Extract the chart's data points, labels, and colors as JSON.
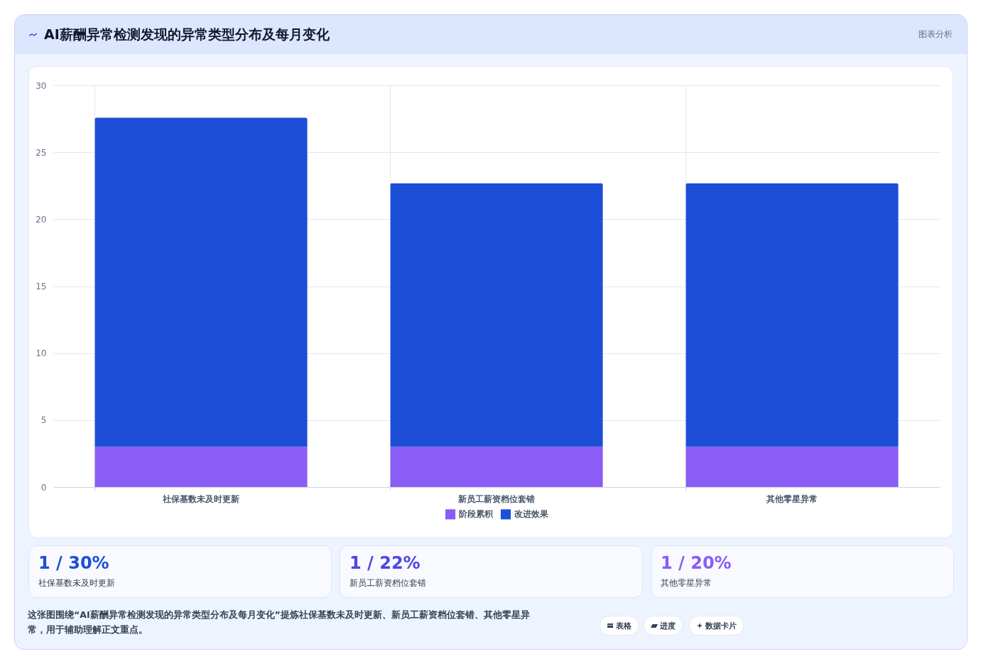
{
  "chart_data": {
    "type": "bar",
    "title": "AI薪酬异常检测发现的异常类型分布及每月变化",
    "categories": [
      "社保基数未及时更新",
      "新员工薪资档位套错",
      "其他零星异常"
    ],
    "series": [
      {
        "name": "阶段累积",
        "color": "#8b5cf6",
        "values": [
          3,
          3,
          3
        ]
      },
      {
        "name": "改进效果",
        "color": "#1d4ed8",
        "values": [
          24.6,
          19.7,
          19.7
        ]
      }
    ],
    "stacked": true,
    "ylim": [
      0,
      30
    ],
    "yticks": [
      0,
      5,
      10,
      15,
      20,
      25,
      30
    ],
    "grid": true,
    "legend": "bottom",
    "annotations": [
      "图表分析",
      "1 / 30%",
      "社保基数未及时更新",
      "1 / 22%",
      "新员工薪资档位套错",
      "1 / 20%",
      "其他零星异常",
      "这张图围绕“AI薪酬异常检测发现的异常类型分布及每月变化”提炼社保基数未及时更新、新员工薪资档位套错、其他零星异常，用于辅助理解正文重点。",
      "表格",
      "进度",
      "数据卡片"
    ]
  }
}
